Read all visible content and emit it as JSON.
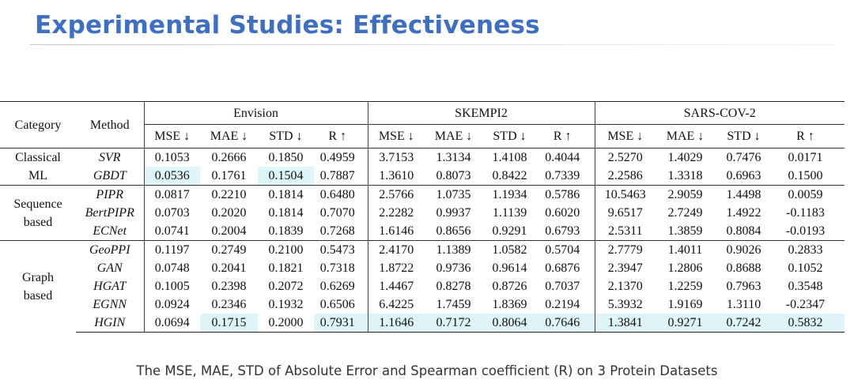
{
  "slide": {
    "title": "Experimental Studies: Effectiveness",
    "caption": "The MSE, MAE, STD of Absolute Error and Spearman coefficient (R) on 3 Protein Datasets"
  },
  "table": {
    "header": {
      "category": "Category",
      "method": "Method"
    },
    "datasets": [
      "Envision",
      "SKEMPI2",
      "SARS-COV-2"
    ],
    "metrics": [
      "MSE ↓",
      "MAE ↓",
      "STD ↓",
      "R ↑"
    ],
    "groups": [
      {
        "category_lines": [
          "Classical",
          "ML"
        ],
        "rows": [
          {
            "method": "SVR",
            "values": [
              "0.1053",
              "0.2666",
              "0.1850",
              "0.4959",
              "3.7153",
              "1.3134",
              "1.4108",
              "0.4044",
              "2.5270",
              "1.4029",
              "0.7476",
              "0.0171"
            ]
          },
          {
            "method": "GBDT",
            "values": [
              "0.0536",
              "0.1761",
              "0.1504",
              "0.7887",
              "1.3610",
              "0.8073",
              "0.8422",
              "0.7339",
              "2.2586",
              "1.3318",
              "0.6963",
              "0.1500"
            ]
          }
        ]
      },
      {
        "category_lines": [
          "Sequence",
          "based"
        ],
        "rows": [
          {
            "method": "PIPR",
            "values": [
              "0.0817",
              "0.2210",
              "0.1814",
              "0.6480",
              "2.5766",
              "1.0735",
              "1.1934",
              "0.5786",
              "10.5463",
              "2.9059",
              "1.4498",
              "0.0059"
            ]
          },
          {
            "method": "BertPIPR",
            "values": [
              "0.0703",
              "0.2020",
              "0.1814",
              "0.7070",
              "2.2282",
              "0.9937",
              "1.1139",
              "0.6020",
              "9.6517",
              "2.7249",
              "1.4922",
              "-0.1183"
            ]
          },
          {
            "method": "ECNet",
            "values": [
              "0.0741",
              "0.2004",
              "0.1839",
              "0.7268",
              "1.6146",
              "0.8656",
              "0.9291",
              "0.6793",
              "2.5311",
              "1.3859",
              "0.8084",
              "-0.0193"
            ]
          }
        ]
      },
      {
        "category_lines": [
          "Graph",
          "based"
        ],
        "rows": [
          {
            "method": "GeoPPI",
            "values": [
              "0.1197",
              "0.2749",
              "0.2100",
              "0.5473",
              "2.4170",
              "1.1389",
              "1.0582",
              "0.5704",
              "2.7779",
              "1.4011",
              "0.9026",
              "0.2833"
            ]
          },
          {
            "method": "GAN",
            "values": [
              "0.0748",
              "0.2041",
              "0.1821",
              "0.7318",
              "1.8722",
              "0.9736",
              "0.9614",
              "0.6876",
              "2.3947",
              "1.2806",
              "0.8688",
              "0.1052"
            ]
          },
          {
            "method": "HGAT",
            "values": [
              "0.1005",
              "0.2398",
              "0.2072",
              "0.6269",
              "1.4467",
              "0.8278",
              "0.8726",
              "0.7037",
              "2.1370",
              "1.2259",
              "0.7963",
              "0.3548"
            ]
          },
          {
            "method": "EGNN",
            "values": [
              "0.0924",
              "0.2346",
              "0.1932",
              "0.6506",
              "6.4225",
              "1.7459",
              "1.8369",
              "0.2194",
              "5.3932",
              "1.9169",
              "1.3110",
              "-0.2347"
            ]
          },
          {
            "method": "HGIN",
            "values": [
              "0.0694",
              "0.1715",
              "0.2000",
              "0.7931",
              "1.1646",
              "0.7172",
              "0.8064",
              "0.7646",
              "1.3841",
              "0.9271",
              "0.7242",
              "0.5832"
            ]
          }
        ]
      }
    ],
    "highlight_color": "#dff5fa"
  }
}
